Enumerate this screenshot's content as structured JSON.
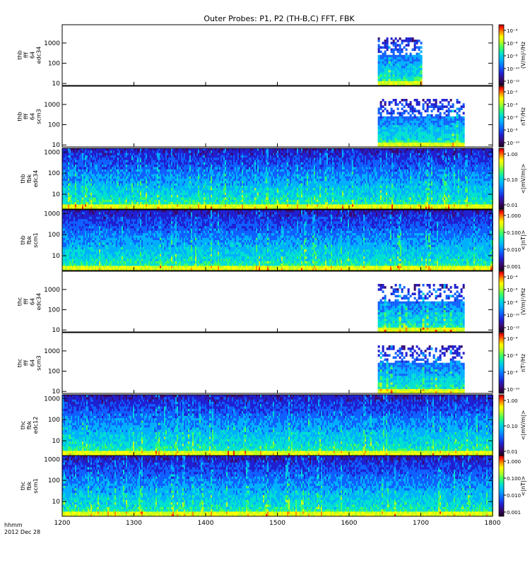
{
  "chart_data": {
    "type": "heatmap",
    "title": "Outer Probes: P1, P2 (TH-B,C) FFT, FBK",
    "x": {
      "min": 1200,
      "max": 1800,
      "ticks": [
        1200,
        1300,
        1400,
        1500,
        1600,
        1700,
        1800
      ],
      "tick_labels": [
        "1200",
        "1300",
        "1400",
        "1500",
        "1600",
        "1700",
        "1800"
      ],
      "label_line1": "hhmm",
      "label_line2": "2012 Dec 28"
    },
    "panels": [
      {
        "id": "thb-fft-edc34",
        "ylabel": [
          "thb",
          "fff",
          "64",
          "edc34"
        ],
        "yscale": "log",
        "yrange": [
          8,
          8000
        ],
        "yticks": [
          10,
          100,
          1000
        ],
        "ytick_labels": [
          "10",
          "100",
          "1000"
        ],
        "data_xrange": [
          1640,
          1700
        ],
        "colorbar_label": "(V/m)²/Hz",
        "colorbar_scale": "log",
        "colorbar_ticks": [
          "10⁻⁴",
          "10⁻⁶",
          "10⁻⁸",
          "10⁻¹⁰",
          "10⁻¹²"
        ]
      },
      {
        "id": "thb-fft-scm3",
        "ylabel": [
          "thb",
          "fff",
          "64",
          "scm3"
        ],
        "yscale": "log",
        "yrange": [
          8,
          8000
        ],
        "yticks": [
          10,
          100,
          1000
        ],
        "ytick_labels": [
          "10",
          "100",
          "1000"
        ],
        "data_xrange": [
          1640,
          1760
        ],
        "colorbar_label": "nT²/Hz",
        "colorbar_scale": "log",
        "colorbar_ticks": [
          "10⁻²",
          "10⁻⁴",
          "10⁻⁶",
          "10⁻⁸",
          "10⁻¹⁰"
        ]
      },
      {
        "id": "thb-fbk-edc34",
        "ylabel": [
          "thb",
          "fbk",
          "edc34"
        ],
        "yscale": "log",
        "yrange": [
          2,
          1500
        ],
        "yticks": [
          10,
          100,
          1000
        ],
        "ytick_labels": [
          "10",
          "100",
          "1000"
        ],
        "data_xrange": [
          1200,
          1800
        ],
        "colorbar_label": "<|mV/m|>",
        "colorbar_scale": "log",
        "colorbar_ticks": [
          "1.00",
          "0.10",
          "0.01"
        ]
      },
      {
        "id": "thb-fbk-scm1",
        "ylabel": [
          "thb",
          "fbk",
          "scm1"
        ],
        "yscale": "log",
        "yrange": [
          2,
          1500
        ],
        "yticks": [
          10,
          100,
          1000
        ],
        "ytick_labels": [
          "10",
          "100",
          "1000"
        ],
        "data_xrange": [
          1200,
          1800
        ],
        "colorbar_label": "<|nT|>",
        "colorbar_scale": "log",
        "colorbar_ticks": [
          "1.000",
          "0.100",
          "0.010",
          "0.001"
        ]
      },
      {
        "id": "thc-fft-edc34",
        "ylabel": [
          "thc",
          "fff",
          "64",
          "edc34"
        ],
        "yscale": "log",
        "yrange": [
          8,
          8000
        ],
        "yticks": [
          10,
          100,
          1000
        ],
        "ytick_labels": [
          "10",
          "100",
          "1000"
        ],
        "data_xrange": [
          1640,
          1760
        ],
        "colorbar_label": "(V/m)²/Hz",
        "colorbar_scale": "log",
        "colorbar_ticks": [
          "10⁻⁴",
          "10⁻⁶",
          "10⁻⁸",
          "10⁻¹⁰",
          "10⁻¹²"
        ]
      },
      {
        "id": "thc-fft-scm3",
        "ylabel": [
          "thc",
          "fff",
          "64",
          "scm3"
        ],
        "yscale": "log",
        "yrange": [
          8,
          8000
        ],
        "yticks": [
          10,
          100,
          1000
        ],
        "ytick_labels": [
          "10",
          "100",
          "1000"
        ],
        "data_xrange": [
          1640,
          1760
        ],
        "colorbar_label": "nT²/Hz",
        "colorbar_scale": "log",
        "colorbar_ticks": [
          "10⁻⁴",
          "10⁻⁶",
          "10⁻⁸",
          "10⁻¹⁰"
        ]
      },
      {
        "id": "thc-fbk-edc12",
        "ylabel": [
          "thc",
          "fbk",
          "edc12"
        ],
        "yscale": "log",
        "yrange": [
          2,
          1500
        ],
        "yticks": [
          10,
          100,
          1000
        ],
        "ytick_labels": [
          "10",
          "100",
          "1000"
        ],
        "data_xrange": [
          1200,
          1800
        ],
        "colorbar_label": "<|mV/m|>",
        "colorbar_scale": "log",
        "colorbar_ticks": [
          "1.00",
          "0.10",
          "0.01"
        ]
      },
      {
        "id": "thc-fbk-scm1",
        "ylabel": [
          "thc",
          "fbk",
          "scm1"
        ],
        "yscale": "log",
        "yrange": [
          2,
          1500
        ],
        "yticks": [
          10,
          100,
          1000
        ],
        "ytick_labels": [
          "10",
          "100",
          "1000"
        ],
        "data_xrange": [
          1200,
          1800
        ],
        "colorbar_label": "<|nT|>",
        "colorbar_scale": "log",
        "colorbar_ticks": [
          "1.000",
          "0.100",
          "0.010",
          "0.001"
        ]
      }
    ]
  },
  "colors": {
    "background": "#ffffff",
    "axis": "#000000",
    "colormap": [
      "#1a0020",
      "#3a0a70",
      "#2020d0",
      "#1060ff",
      "#00b0ff",
      "#00e0d0",
      "#40ff60",
      "#c0ff20",
      "#ffff00",
      "#ff9000",
      "#ff2000",
      "#b00000"
    ]
  }
}
